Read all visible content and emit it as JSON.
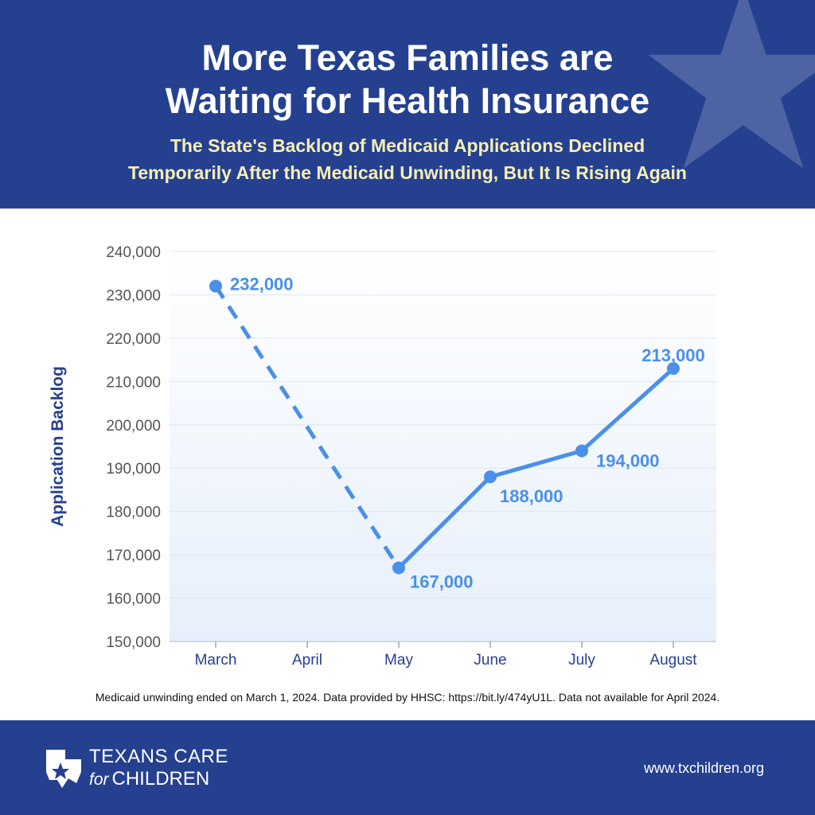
{
  "header": {
    "title_line1": "More Texas Families are",
    "title_line2": "Waiting for Health Insurance",
    "subtitle_line1": "The State's Backlog of Medicaid Applications Declined",
    "subtitle_line2": "Temporarily After the Medicaid Unwinding, But It Is Rising Again"
  },
  "colors": {
    "brand_navy": "#25408f",
    "subtitle_yellow": "#f6efb4",
    "series_blue": "#4a90e8"
  },
  "chart_data": {
    "type": "line",
    "ylabel": "Application Backlog",
    "ylim": [
      150000,
      240000
    ],
    "yticks": [
      "150,000",
      "160,000",
      "170,000",
      "180,000",
      "190,000",
      "200,000",
      "210,000",
      "220,000",
      "230,000",
      "240,000"
    ],
    "ytick_values": [
      150000,
      160000,
      170000,
      180000,
      190000,
      200000,
      210000,
      220000,
      230000,
      240000
    ],
    "categories": [
      "March",
      "April",
      "May",
      "June",
      "July",
      "August"
    ],
    "series": [
      {
        "values": [
          232000,
          null,
          167000,
          188000,
          194000,
          213000
        ],
        "labels": [
          "232,000",
          "",
          "167,000",
          "188,000",
          "194,000",
          "213,000"
        ],
        "note": "dashed segment from March to May (April data unavailable)"
      }
    ],
    "grid": true
  },
  "footnote": "Medicaid unwinding ended on March 1, 2024. Data provided by HHSC: https://bit.ly/474yU1L. Data not available for April 2024.",
  "footer": {
    "logo_top": "TEXANS CARE",
    "logo_for": "for",
    "logo_children": "CHILDREN",
    "website": "www.txchildren.org"
  }
}
